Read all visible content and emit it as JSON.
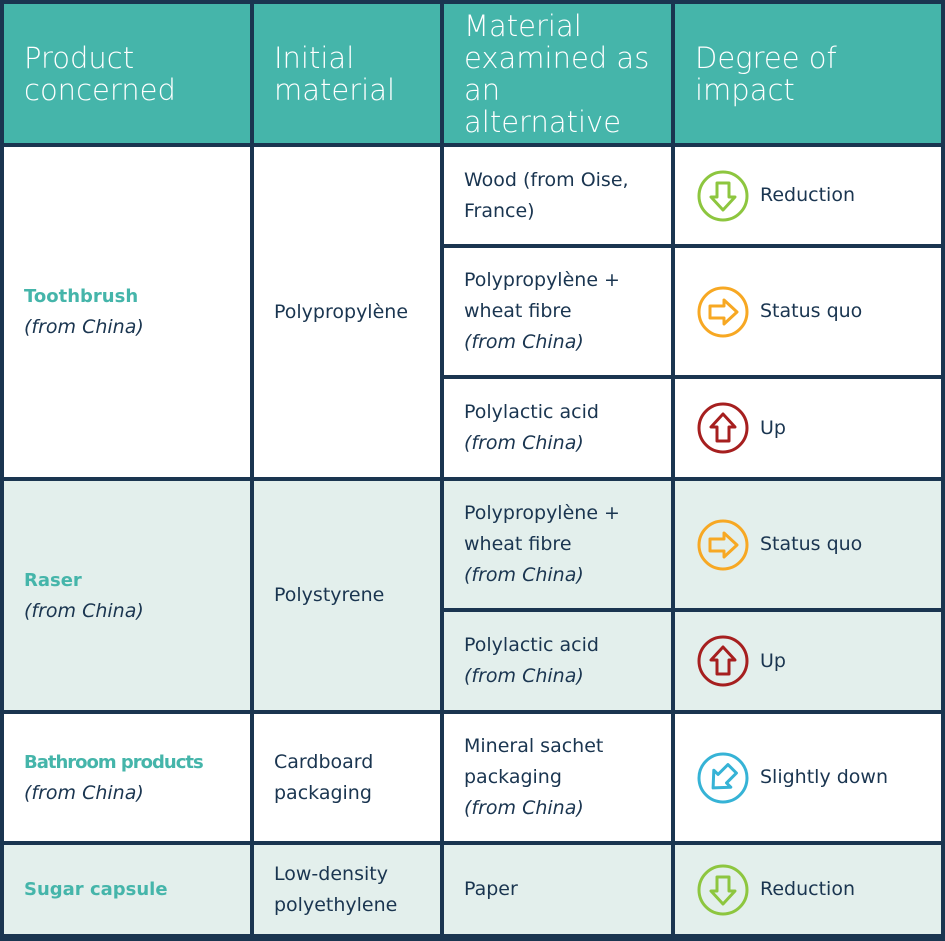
{
  "headers": [
    "Product concerned",
    "Initial material",
    "Material examined as an alternative",
    "Degree of impact"
  ],
  "colors": {
    "header_bg": "#45b5aa",
    "border": "#1a3550",
    "text": "#1a3550",
    "product": "#45b5aa",
    "alt_row_bg": "#e3efec",
    "reduction": "#8dc63f",
    "status_quo": "#f7a823",
    "up": "#a61f1f",
    "slightly_down": "#36b3d6"
  },
  "products": [
    {
      "name": "Toothbrush",
      "origin": "(from China)",
      "initial": "Polypropylène"
    },
    {
      "name": "Raser",
      "origin": "(from China)",
      "initial": "Polystyrene"
    },
    {
      "name": "Bathroom products",
      "origin": "(from China)",
      "initial": "Cardboard packaging"
    },
    {
      "name": "Sugar capsule",
      "origin": "",
      "initial": "Low-density polyethylene"
    }
  ],
  "alternatives": [
    {
      "line1": "Wood (from Oise,",
      "line2": "France)",
      "origin": "",
      "impact": "Reduction",
      "icon": "arrow-down-circle-icon"
    },
    {
      "line1": "Polypropylène +",
      "line2": "wheat fibre",
      "origin": "(from China)",
      "impact": "Status quo",
      "icon": "arrow-right-circle-icon"
    },
    {
      "line1": "Polylactic acid",
      "line2": "",
      "origin": "(from China)",
      "impact": "Up",
      "icon": "arrow-up-circle-icon"
    },
    {
      "line1": "Polypropylène +",
      "line2": "wheat fibre",
      "origin": "(from China)",
      "impact": "Status quo",
      "icon": "arrow-right-circle-icon"
    },
    {
      "line1": "Polylactic acid",
      "line2": "",
      "origin": "(from China)",
      "impact": "Up",
      "icon": "arrow-up-circle-icon"
    },
    {
      "line1": "Mineral sachet",
      "line2": "packaging",
      "origin": "(from China)",
      "impact": "Slightly down",
      "icon": "arrow-down-left-circle-icon"
    },
    {
      "line1": "Paper",
      "line2": "",
      "origin": "",
      "impact": "Reduction",
      "icon": "arrow-down-circle-icon"
    }
  ]
}
